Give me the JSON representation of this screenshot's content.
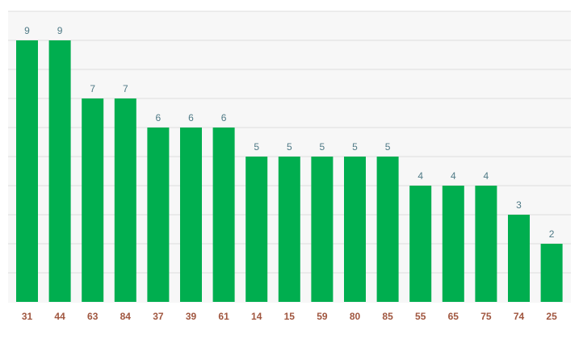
{
  "chart_data": {
    "type": "bar",
    "categories": [
      "31",
      "44",
      "63",
      "84",
      "37",
      "39",
      "61",
      "14",
      "15",
      "59",
      "80",
      "85",
      "55",
      "65",
      "75",
      "74",
      "25"
    ],
    "values": [
      9,
      9,
      7,
      7,
      6,
      6,
      6,
      5,
      5,
      5,
      5,
      5,
      4,
      4,
      4,
      3,
      2
    ],
    "title": "",
    "xlabel": "",
    "ylabel": "",
    "ylim": [
      0,
      10
    ],
    "grid": true,
    "data_labels": true,
    "colors": {
      "bar": "#00ae4f",
      "plot_background": "#f7f7f7",
      "grid": "#dddddd",
      "value_label": "#4f7a86",
      "tick_label": "#a0563f"
    }
  }
}
